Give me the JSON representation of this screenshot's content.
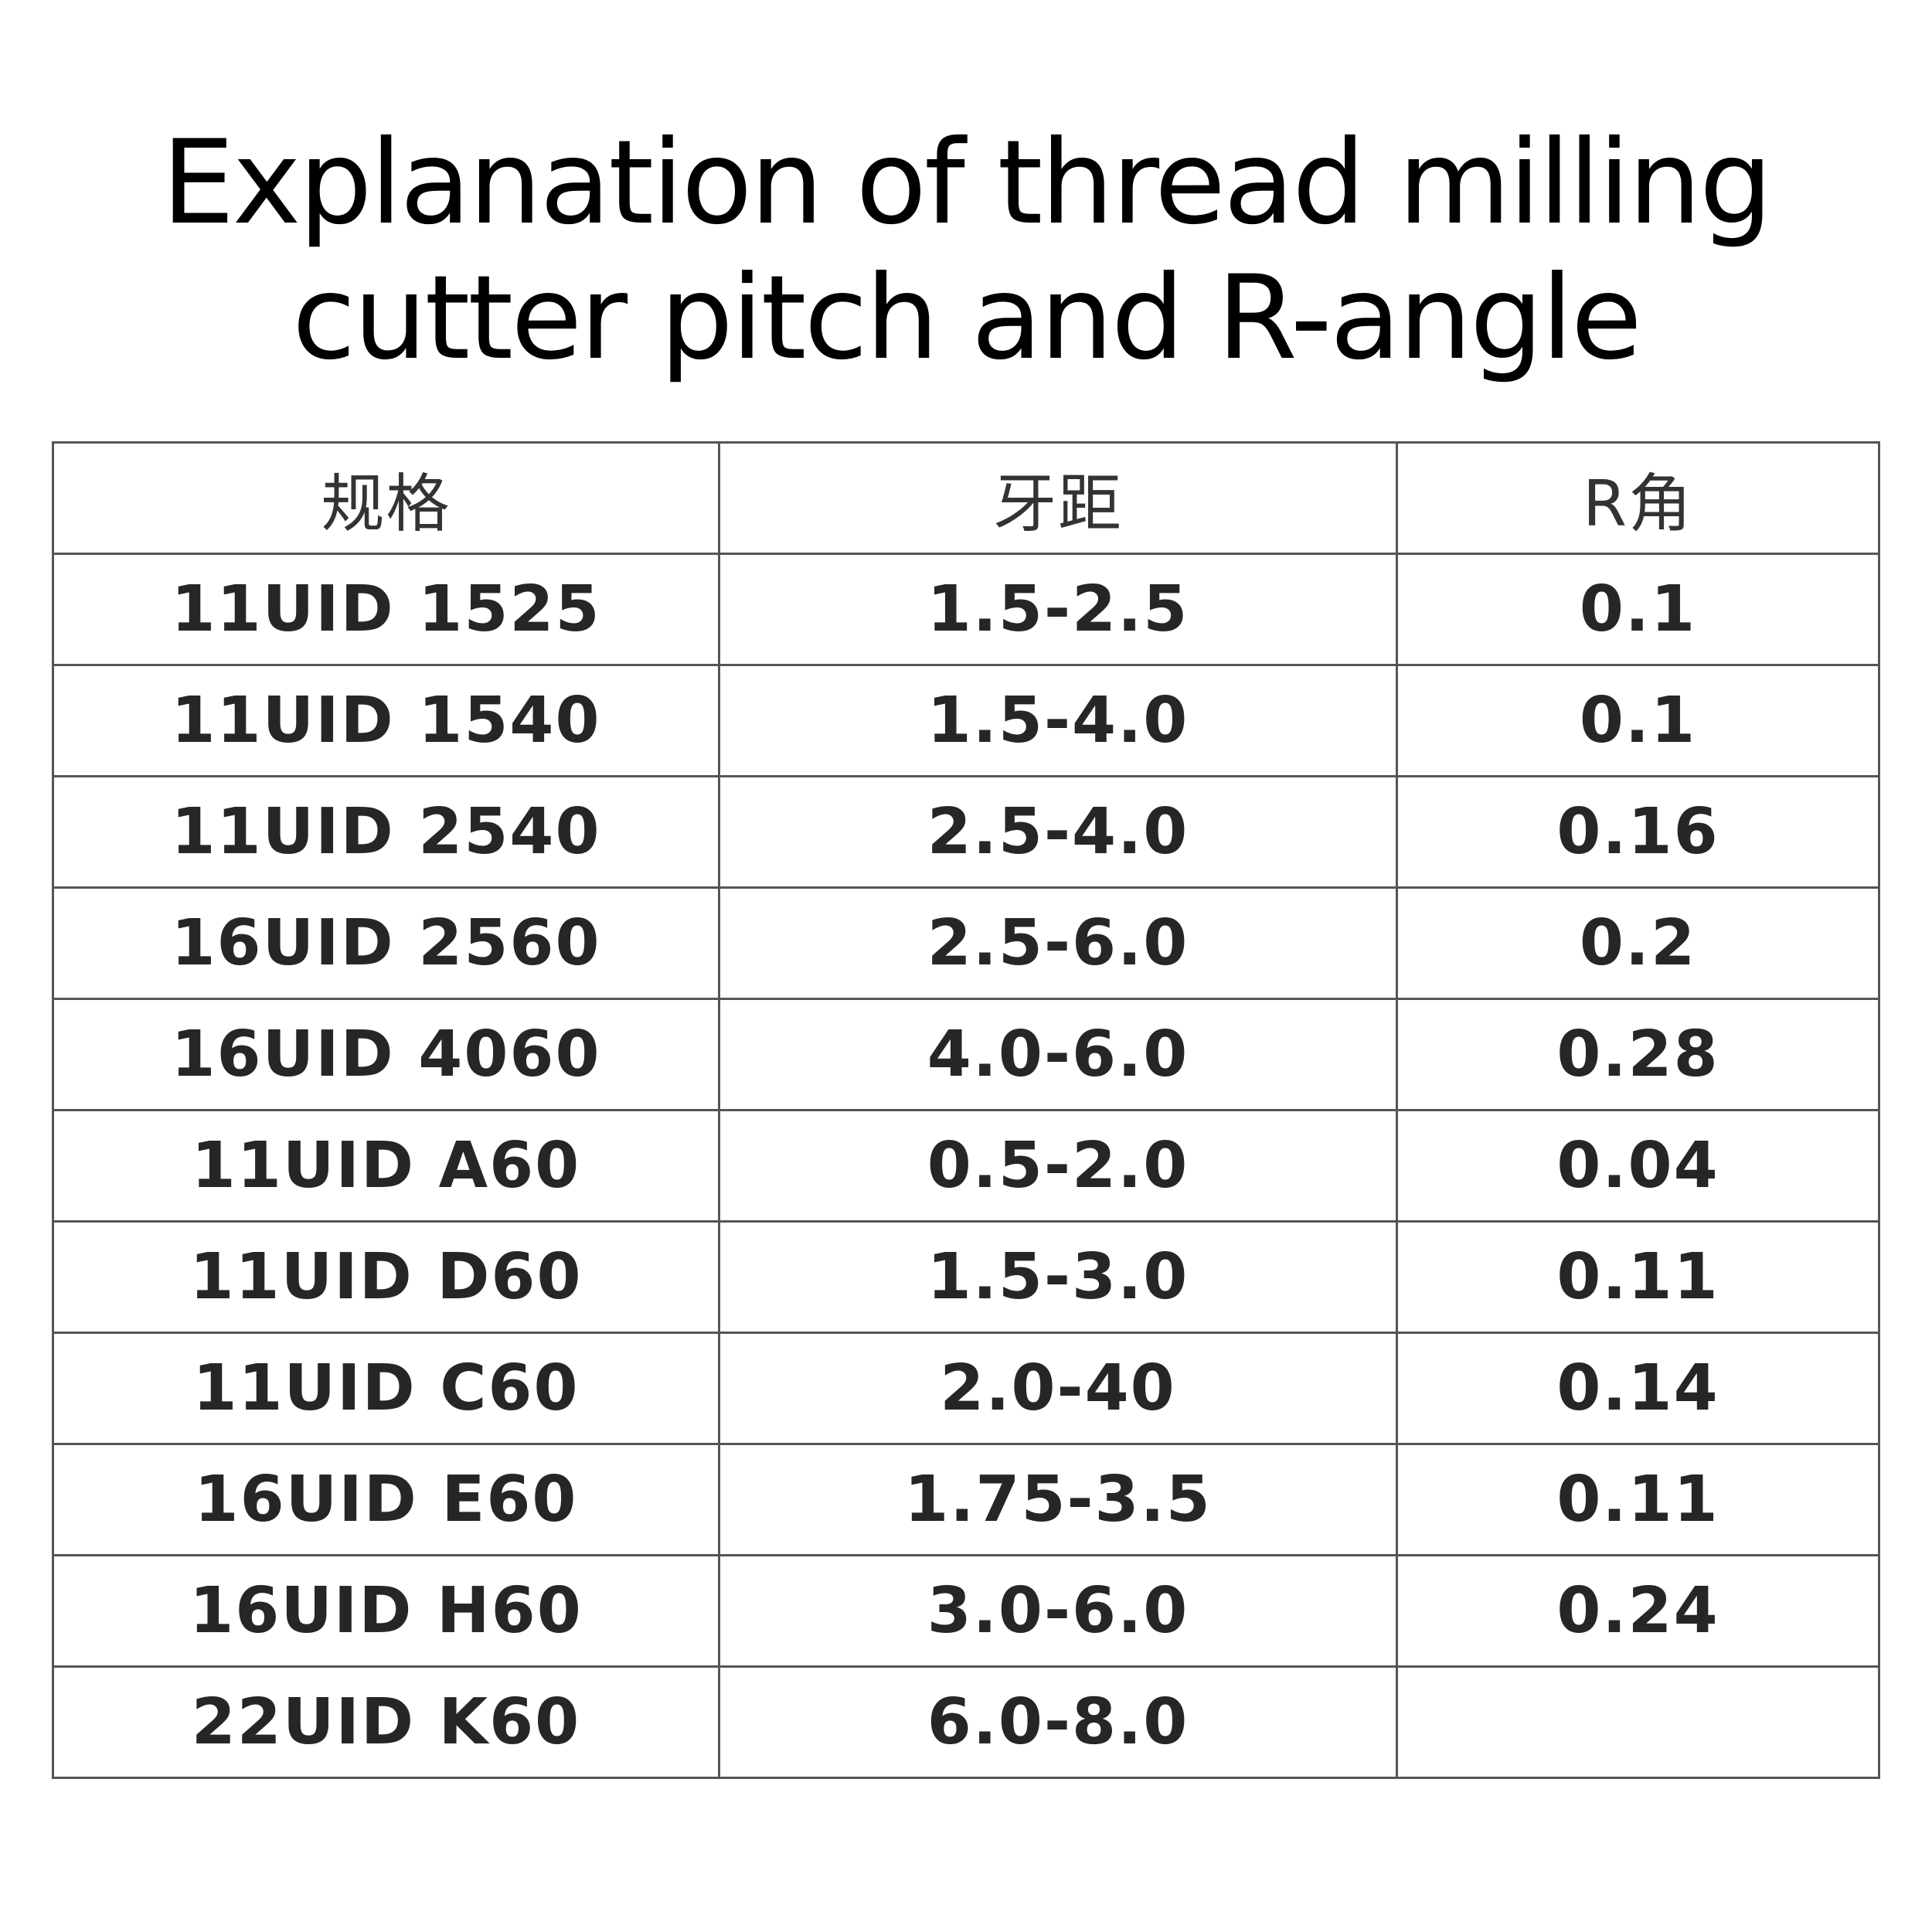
{
  "title_lines": [
    "Explanation of thread milling",
    "cutter pitch and R-angle"
  ],
  "table": {
    "header": [
      "规格",
      "牙距",
      "R角"
    ],
    "rows": [
      [
        "11UID 1525",
        "1.5-2.5",
        "0.1"
      ],
      [
        "11UID 1540",
        "1.5-4.0",
        "0.1"
      ],
      [
        "11UID 2540",
        "2.5-4.0",
        "0.16"
      ],
      [
        "16UID 2560",
        "2.5-6.0",
        "0.2"
      ],
      [
        "16UID 4060",
        "4.0-6.0",
        "0.28"
      ],
      [
        "11UID A60",
        "0.5-2.0",
        "0.04"
      ],
      [
        "11UID D60",
        "1.5-3.0",
        "0.11"
      ],
      [
        "11UID C60",
        "2.0-40",
        "0.14"
      ],
      [
        "16UID E60",
        "1.75-3.5",
        "0.11"
      ],
      [
        "16UID H60",
        "3.0-6.0",
        "0.24"
      ],
      [
        "22UID K60",
        "6.0-8.0",
        null
      ]
    ]
  }
}
